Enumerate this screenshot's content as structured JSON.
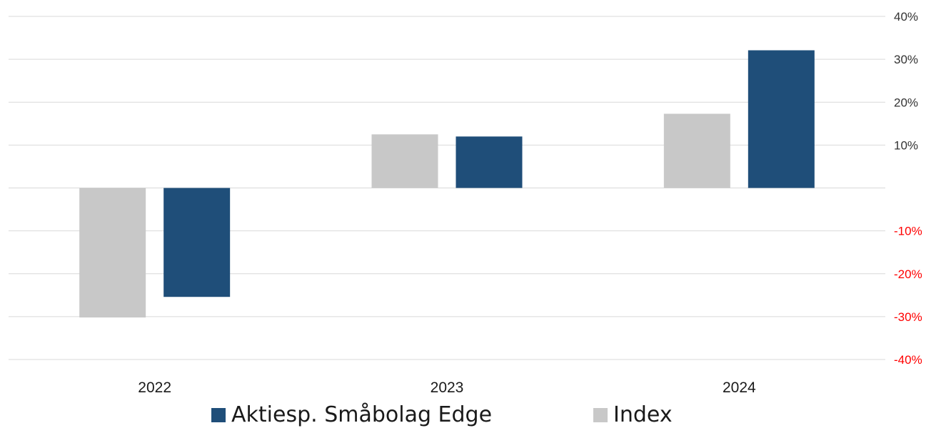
{
  "chart_data": {
    "type": "bar",
    "categories": [
      "2022",
      "2023",
      "2024"
    ],
    "series": [
      {
        "name": "Index",
        "color": "#c8c8c8",
        "values": [
          -30.2,
          12.5,
          17.3
        ]
      },
      {
        "name": "Aktiesp. Småbolag Edge",
        "color": "#1f4e79",
        "values": [
          -25.4,
          12.0,
          32.1
        ]
      }
    ],
    "ylim": [
      -40,
      40
    ],
    "yticks": [
      {
        "value": 40,
        "label": "40%",
        "color": "#333333"
      },
      {
        "value": 30,
        "label": "30%",
        "color": "#333333"
      },
      {
        "value": 20,
        "label": "20%",
        "color": "#333333"
      },
      {
        "value": 10,
        "label": "10%",
        "color": "#333333"
      },
      {
        "value": -10,
        "label": "-10%",
        "color": "#ff0000"
      },
      {
        "value": -20,
        "label": "-20%",
        "color": "#ff0000"
      },
      {
        "value": -30,
        "label": "-30%",
        "color": "#ff0000"
      },
      {
        "value": -40,
        "label": "-40%",
        "color": "#ff0000"
      }
    ],
    "y_axis_position": "right",
    "grid": true,
    "legend_position": "bottom"
  },
  "legend": [
    {
      "label": "Aktiesp. Småbolag Edge",
      "color": "#1f4e79"
    },
    {
      "label": "Index",
      "color": "#c8c8c8"
    }
  ]
}
